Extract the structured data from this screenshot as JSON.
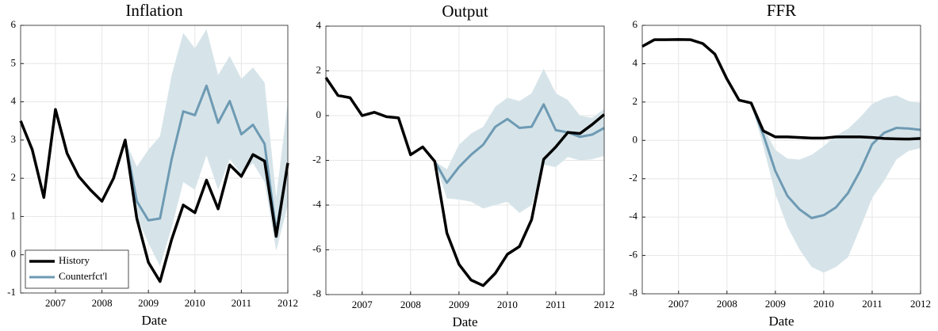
{
  "chart_data": [
    {
      "type": "line",
      "title": "Inflation",
      "xlabel": "Date",
      "x": [
        2006.25,
        2006.5,
        2006.75,
        2007,
        2007.25,
        2007.5,
        2007.75,
        2008,
        2008.25,
        2008.5,
        2008.75,
        2009,
        2009.25,
        2009.5,
        2009.75,
        2010,
        2010.25,
        2010.5,
        2010.75,
        2011,
        2011.25,
        2011.5,
        2011.75,
        2012
      ],
      "series": [
        {
          "name": "History",
          "color": "#000000",
          "values": [
            3.5,
            2.75,
            1.5,
            3.8,
            2.65,
            2.05,
            1.7,
            1.4,
            2.0,
            3.0,
            0.95,
            -0.2,
            -0.7,
            0.4,
            1.3,
            1.1,
            1.95,
            1.2,
            2.35,
            2.05,
            2.62,
            2.45,
            0.48,
            2.4
          ]
        },
        {
          "name": "Counterfct'l",
          "color": "#6e9ab3",
          "values": [
            null,
            null,
            null,
            null,
            null,
            null,
            null,
            null,
            null,
            3.0,
            1.4,
            0.9,
            0.95,
            2.5,
            3.75,
            3.65,
            4.42,
            3.45,
            4.02,
            3.15,
            3.4,
            2.9,
            0.6,
            2.4
          ]
        }
      ],
      "band": {
        "color": "#d6e4e9",
        "lower": [
          null,
          null,
          null,
          null,
          null,
          null,
          null,
          null,
          null,
          3.0,
          1.0,
          0.3,
          -0.3,
          0.7,
          1.9,
          1.7,
          2.6,
          1.7,
          2.5,
          2.1,
          2.4,
          1.9,
          0.1,
          1.3
        ],
        "upper": [
          null,
          null,
          null,
          null,
          null,
          null,
          null,
          null,
          null,
          3.0,
          2.3,
          2.75,
          3.1,
          4.7,
          5.8,
          5.4,
          5.9,
          4.7,
          5.2,
          4.6,
          4.9,
          4.5,
          1.5,
          4.0
        ]
      },
      "xlim": [
        2006.25,
        2012
      ],
      "xticks": [
        2007,
        2008,
        2009,
        2010,
        2011,
        2012
      ],
      "ylim": [
        -1,
        6
      ],
      "yticks": [
        -1,
        0,
        1,
        2,
        3,
        4,
        5,
        6
      ],
      "grid": true,
      "legend": "lower left"
    },
    {
      "type": "line",
      "title": "Output",
      "xlabel": "Date",
      "x": [
        2006.25,
        2006.5,
        2006.75,
        2007,
        2007.25,
        2007.5,
        2007.75,
        2008,
        2008.25,
        2008.5,
        2008.75,
        2009,
        2009.25,
        2009.5,
        2009.75,
        2010,
        2010.25,
        2010.5,
        2010.75,
        2011,
        2011.25,
        2011.5,
        2011.75,
        2012
      ],
      "series": [
        {
          "color": "#000000",
          "values": [
            1.7,
            0.9,
            0.8,
            0.0,
            0.15,
            -0.05,
            -0.1,
            -1.75,
            -1.4,
            -2.05,
            -5.25,
            -6.65,
            -7.35,
            -7.6,
            -7.05,
            -6.2,
            -5.85,
            -4.65,
            -1.95,
            -1.4,
            -0.75,
            -0.8,
            -0.4,
            0.05
          ]
        },
        {
          "color": "#6e9ab3",
          "values": [
            null,
            null,
            null,
            null,
            null,
            null,
            null,
            null,
            null,
            -2.05,
            -3.0,
            -2.3,
            -1.75,
            -1.3,
            -0.5,
            -0.15,
            -0.55,
            -0.5,
            0.5,
            -0.65,
            -0.75,
            -0.95,
            -0.85,
            -0.55
          ]
        }
      ],
      "band": {
        "color": "#d6e4e9",
        "lower": [
          null,
          null,
          null,
          null,
          null,
          null,
          null,
          null,
          null,
          -2.05,
          -3.7,
          -3.75,
          -3.85,
          -4.15,
          -4.0,
          -3.85,
          -4.35,
          -4.0,
          -2.2,
          -2.3,
          -1.85,
          -2.0,
          -1.95,
          -1.8
        ],
        "upper": [
          null,
          null,
          null,
          null,
          null,
          null,
          null,
          null,
          null,
          -2.05,
          -2.4,
          -1.3,
          -0.8,
          -0.5,
          0.4,
          0.8,
          0.65,
          1.0,
          2.1,
          1.0,
          0.7,
          0.0,
          -0.1,
          0.3
        ]
      },
      "xlim": [
        2006.25,
        2012
      ],
      "xticks": [
        2007,
        2008,
        2009,
        2010,
        2011,
        2012
      ],
      "ylim": [
        -8,
        4
      ],
      "yticks": [
        -8,
        -6,
        -4,
        -2,
        0,
        2,
        4
      ],
      "grid": true
    },
    {
      "type": "line",
      "title": "FFR",
      "xlabel": "Date",
      "x": [
        2006.25,
        2006.5,
        2006.75,
        2007,
        2007.25,
        2007.5,
        2007.75,
        2008,
        2008.25,
        2008.5,
        2008.75,
        2009,
        2009.25,
        2009.5,
        2009.75,
        2010,
        2010.25,
        2010.5,
        2010.75,
        2011,
        2011.25,
        2011.5,
        2011.75,
        2012
      ],
      "series": [
        {
          "color": "#000000",
          "values": [
            4.9,
            5.25,
            5.25,
            5.26,
            5.25,
            5.05,
            4.5,
            3.2,
            2.1,
            1.95,
            0.5,
            0.18,
            0.18,
            0.15,
            0.12,
            0.12,
            0.18,
            0.18,
            0.18,
            0.15,
            0.1,
            0.08,
            0.07,
            0.1
          ]
        },
        {
          "color": "#6e9ab3",
          "values": [
            null,
            null,
            null,
            null,
            null,
            null,
            null,
            null,
            null,
            1.95,
            0.3,
            -1.6,
            -2.9,
            -3.6,
            -4.05,
            -3.9,
            -3.5,
            -2.75,
            -1.6,
            -0.2,
            0.4,
            0.65,
            0.62,
            0.55
          ]
        }
      ],
      "band": {
        "color": "#d6e4e9",
        "lower": [
          null,
          null,
          null,
          null,
          null,
          null,
          null,
          null,
          null,
          1.95,
          -0.3,
          -2.8,
          -4.5,
          -5.7,
          -6.6,
          -6.9,
          -6.6,
          -6.1,
          -4.6,
          -3.0,
          -2.1,
          -1.0,
          -0.55,
          -0.4
        ],
        "upper": [
          null,
          null,
          null,
          null,
          null,
          null,
          null,
          null,
          null,
          1.95,
          0.7,
          -0.5,
          -0.95,
          -1.0,
          -0.75,
          -0.3,
          0.25,
          0.6,
          1.2,
          1.9,
          2.2,
          2.35,
          2.05,
          1.95
        ]
      },
      "xlim": [
        2006.25,
        2012
      ],
      "xticks": [
        2007,
        2008,
        2009,
        2010,
        2011,
        2012
      ],
      "ylim": [
        -8,
        6
      ],
      "yticks": [
        -8,
        -6,
        -4,
        -2,
        0,
        2,
        4,
        6
      ],
      "grid": true
    }
  ]
}
